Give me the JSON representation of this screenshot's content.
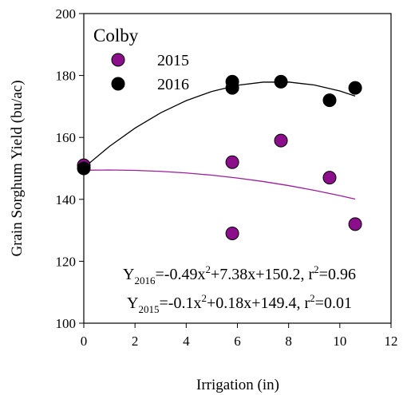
{
  "chart_data": {
    "type": "scatter",
    "xlabel": "Irrigation (in)",
    "ylabel": "Grain Sorghum Yield (bu/ac)",
    "legend_title": "Colby",
    "legend_position": "upper left",
    "xlim": [
      0,
      12
    ],
    "xticks": [
      0,
      2,
      4,
      6,
      8,
      10,
      12
    ],
    "ylim": [
      100,
      200
    ],
    "yticks": [
      100,
      120,
      140,
      160,
      180,
      200
    ],
    "series": [
      {
        "name": "2015",
        "color": "#8b0f8b",
        "x": [
          0,
          5.8,
          5.8,
          7.7,
          9.6,
          10.6
        ],
        "values": [
          151,
          152,
          129,
          159,
          147,
          132
        ]
      },
      {
        "name": "2016",
        "color": "#000000",
        "x": [
          0,
          5.8,
          5.8,
          7.7,
          9.6,
          10.6
        ],
        "values": [
          150,
          178,
          176,
          178,
          172,
          176
        ]
      }
    ],
    "fits": [
      {
        "color": "#000000",
        "x": [
          0,
          1,
          2,
          3,
          4,
          5,
          6,
          7,
          8,
          9,
          10,
          10.6
        ],
        "values": [
          150.2,
          157.09,
          163.0,
          167.93,
          171.88,
          174.85,
          176.84,
          177.85,
          177.88,
          176.93,
          175.0,
          173.37
        ]
      },
      {
        "color": "#9b1f9b",
        "x": [
          0,
          1,
          2,
          3,
          4,
          5,
          6,
          7,
          8,
          9,
          10,
          10.6
        ],
        "values": [
          149.4,
          149.48,
          149.36,
          149.04,
          148.52,
          147.8,
          146.88,
          145.76,
          144.44,
          142.92,
          141.2,
          140.07
        ]
      }
    ],
    "annotations": [
      {
        "y": "Y",
        "sub": "2016",
        "a": "=-0.49x",
        "sup": "2",
        "b": "+7.38x+150.2, r",
        "sup2": "2",
        "c": "=0.96"
      },
      {
        "y": "Y",
        "sub": "2015",
        "a": "=-0.1x",
        "sup": "2",
        "b": "+0.18x+149.4, r",
        "sup2": "2",
        "c": "=0.01"
      }
    ]
  }
}
